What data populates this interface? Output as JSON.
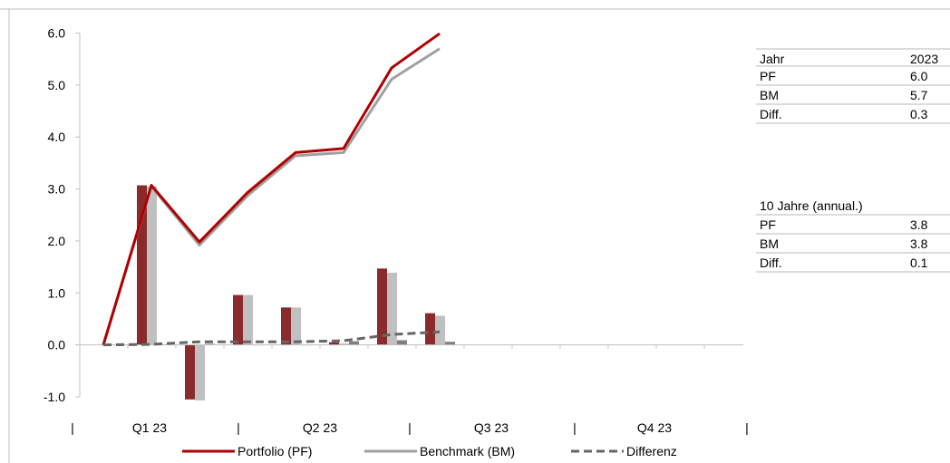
{
  "chart_data": {
    "type": "bar+line",
    "title": "",
    "xlabel": "",
    "ylabel": "",
    "ylim": [
      -1.0,
      6.0
    ],
    "yticks": [
      "6.0",
      "5.0",
      "4.0",
      "3.0",
      "2.0",
      "1.0",
      "0.0",
      "-1.0"
    ],
    "yticks_values": [
      6.0,
      5.0,
      4.0,
      3.0,
      2.0,
      1.0,
      0.0,
      -1.0
    ],
    "grid": false,
    "x_period_labels": [
      "Q1 23",
      "Q2 23",
      "Q3 23",
      "Q4 23"
    ],
    "x_separator_label": "|",
    "bar_series": [
      {
        "name": "Portfolio (PF)",
        "color": "#8b2a2a",
        "values": [
          3.07,
          -1.05,
          0.96,
          0.72,
          0.05,
          1.47,
          0.61
        ]
      },
      {
        "name": "Benchmark (BM)",
        "color": "#c0c0c0",
        "values": [
          3.05,
          -1.07,
          0.96,
          0.72,
          0.03,
          1.39,
          0.56
        ]
      },
      {
        "name": "Differenz",
        "color": "#808080",
        "values": [
          0.01,
          0.02,
          0.0,
          0.0,
          0.07,
          0.09,
          0.06
        ]
      }
    ],
    "line_series": [
      {
        "name": "Portfolio (PF)",
        "color": "#b00000",
        "style": "solid",
        "values": [
          0.0,
          3.07,
          1.98,
          2.93,
          3.7,
          3.78,
          5.33,
          5.99
        ]
      },
      {
        "name": "Benchmark (BM)",
        "color": "#a0a0a0",
        "style": "solid",
        "values": [
          0.0,
          3.05,
          1.92,
          2.87,
          3.64,
          3.7,
          5.11,
          5.7
        ]
      },
      {
        "name": "Differenz",
        "color": "#666666",
        "style": "dashed",
        "values": [
          0.0,
          0.01,
          0.06,
          0.06,
          0.06,
          0.08,
          0.2,
          0.25
        ]
      }
    ],
    "legend": {
      "position": "bottom",
      "entries": [
        {
          "label": "Portfolio (PF)",
          "color": "#b00000",
          "style": "solid"
        },
        {
          "label": "Benchmark (BM)",
          "color": "#a0a0a0",
          "style": "solid"
        },
        {
          "label": "Differenz",
          "color": "#666666",
          "style": "dashed"
        }
      ]
    }
  },
  "panel_year": {
    "header_key": "Jahr",
    "header_value": "2023",
    "rows": [
      {
        "key": "PF",
        "value": "6.0"
      },
      {
        "key": "BM",
        "value": "5.7"
      },
      {
        "key": "Diff.",
        "value": "0.3"
      }
    ]
  },
  "panel_10y": {
    "header_key": "10 Jahre (annual.)",
    "header_value": "",
    "rows": [
      {
        "key": "PF",
        "value": "3.8"
      },
      {
        "key": "BM",
        "value": "3.8"
      },
      {
        "key": "Diff.",
        "value": "0.1"
      }
    ]
  }
}
